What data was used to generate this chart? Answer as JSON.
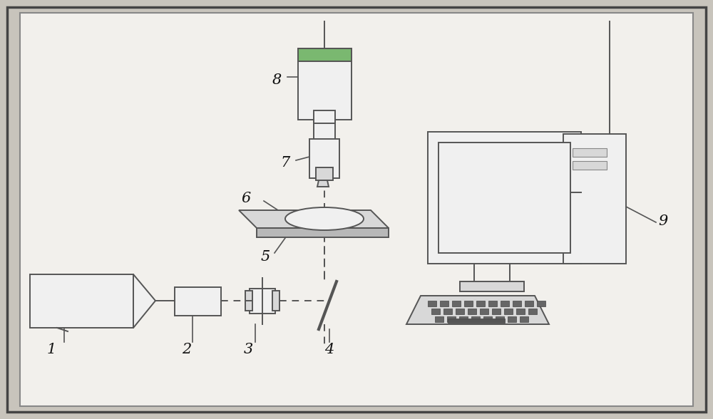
{
  "fig_bg": "#c8c4bc",
  "lc": "#555555",
  "dc": "#555555",
  "fc_light": "#f0f0f0",
  "fc_mid": "#d8d8d8",
  "fc_dark": "#b8b8b8",
  "green_top": "#7ab870",
  "label_color": "#111111",
  "label_fontsize": 15,
  "border_color": "#444444"
}
